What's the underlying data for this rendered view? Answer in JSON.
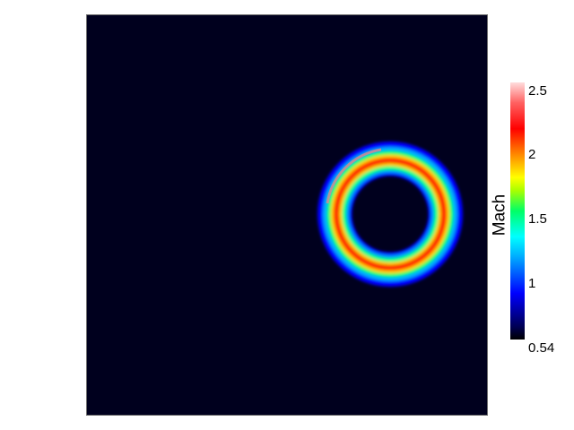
{
  "view": {
    "background_color": "#00001e",
    "frame_color": "#6e6e6e",
    "feature": {
      "shape": "ring",
      "colors": [
        "#0000ff",
        "#00ffff",
        "#00ff00",
        "#ffff00",
        "#ff0000",
        "#ff7070"
      ]
    }
  },
  "colorbar": {
    "title": "Mach",
    "colormap": "rainbow",
    "range": [
      0.54,
      2.5
    ],
    "ticks": [
      {
        "value": 2.5,
        "label": "2.5"
      },
      {
        "value": 2.0,
        "label": "2"
      },
      {
        "value": 1.5,
        "label": "1.5"
      },
      {
        "value": 1.0,
        "label": "1"
      },
      {
        "value": 0.54,
        "label": "0.54"
      }
    ]
  }
}
